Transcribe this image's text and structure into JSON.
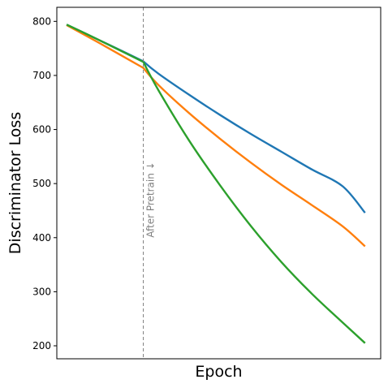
{
  "chart_data": {
    "type": "line",
    "xlabel": "Epoch",
    "ylabel": "Discriminator Loss",
    "ylim": [
      176,
      826
    ],
    "xlim": [
      -0.32,
      10.24
    ],
    "yticks": [
      200,
      300,
      400,
      500,
      600,
      700,
      800
    ],
    "show_x_ticks": false,
    "grid": false,
    "legend": null,
    "annotation": {
      "text": "After Pretrain ↓",
      "x": 2.5,
      "style": "dashed-vertical-line",
      "color": "#808080"
    },
    "series": [
      {
        "color": "#1f77b4",
        "x": [
          0,
          1,
          2,
          2.5,
          3,
          4,
          5,
          6,
          7,
          8,
          9,
          9.73
        ],
        "y": [
          794,
          767,
          740,
          726,
          703,
          664,
          627,
          592,
          559,
          526,
          495,
          446
        ]
      },
      {
        "color": "#ff7f0e",
        "x": [
          0,
          1,
          2,
          2.5,
          3,
          4,
          5,
          6,
          7,
          8,
          9,
          9.73
        ],
        "y": [
          793,
          762,
          730,
          714,
          682,
          630,
          583,
          539,
          498,
          460,
          421,
          384
        ]
      },
      {
        "color": "#2ca02c",
        "x": [
          0,
          1,
          2,
          2.5,
          3,
          4,
          5,
          6,
          7,
          8,
          9,
          9.73
        ],
        "y": [
          794,
          767,
          739,
          725,
          672,
          579,
          497,
          422,
          355,
          296,
          243,
          205
        ]
      }
    ]
  }
}
